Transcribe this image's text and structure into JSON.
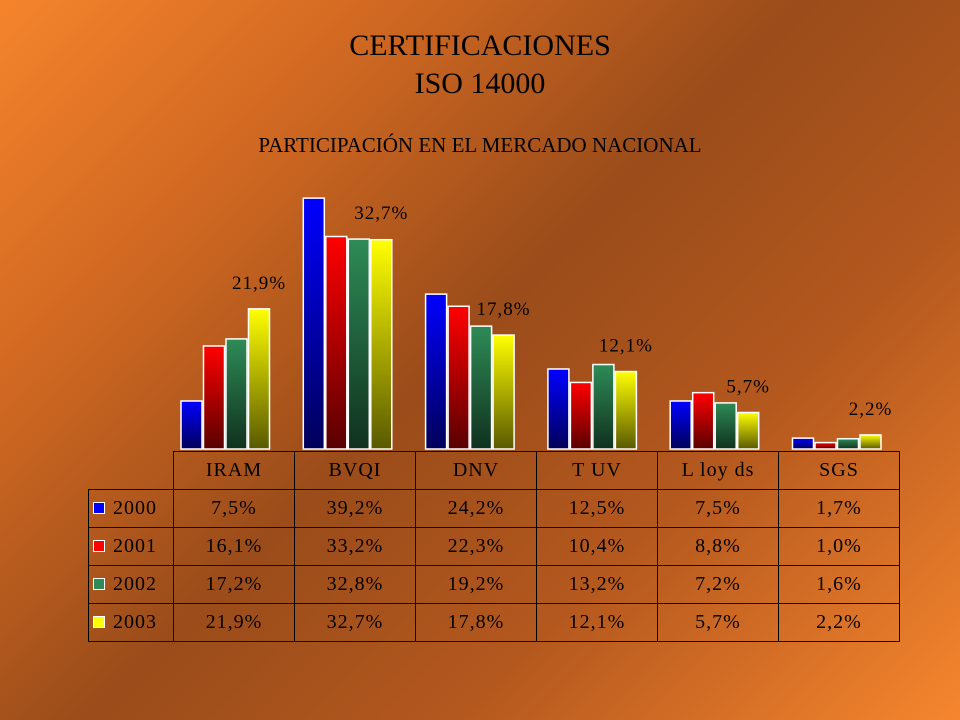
{
  "title_line1": "CERTIFICACIONES",
  "title_line2": "ISO 14000",
  "subtitle": "PARTICIPACIÓN EN EL MERCADO NACIONAL",
  "chart_data": {
    "type": "bar",
    "categories": [
      "IRAM",
      "BVQI",
      "DNV",
      "T UV",
      "L loy ds",
      "SGS"
    ],
    "series": [
      {
        "name": "2000",
        "color": "#0000ff",
        "values": [
          7.5,
          39.2,
          24.2,
          12.5,
          7.5,
          1.7
        ],
        "labels": [
          "7,5%",
          "39,2%",
          "24,2%",
          "12,5%",
          "7,5%",
          "1,7%"
        ]
      },
      {
        "name": "2001",
        "color": "#ff0000",
        "values": [
          16.1,
          33.2,
          22.3,
          10.4,
          8.8,
          1.0
        ],
        "labels": [
          "16,1%",
          "33,2%",
          "22,3%",
          "10,4%",
          "8,8%",
          "1,0%"
        ]
      },
      {
        "name": "2002",
        "color": "#2e8b57",
        "values": [
          17.2,
          32.8,
          19.2,
          13.2,
          7.2,
          1.6
        ],
        "labels": [
          "17,2%",
          "32,8%",
          "19,2%",
          "13,2%",
          "7,2%",
          "1,6%"
        ]
      },
      {
        "name": "2003",
        "color": "#ffff00",
        "values": [
          21.9,
          32.7,
          17.8,
          12.1,
          5.7,
          2.2
        ],
        "labels": [
          "21,9%",
          "32,7%",
          "17,8%",
          "12,1%",
          "5,7%",
          "2,2%"
        ]
      }
    ],
    "data_labels_series": "2003",
    "ylim": [
      0,
      40
    ],
    "grid": false,
    "legend": "data-table"
  }
}
